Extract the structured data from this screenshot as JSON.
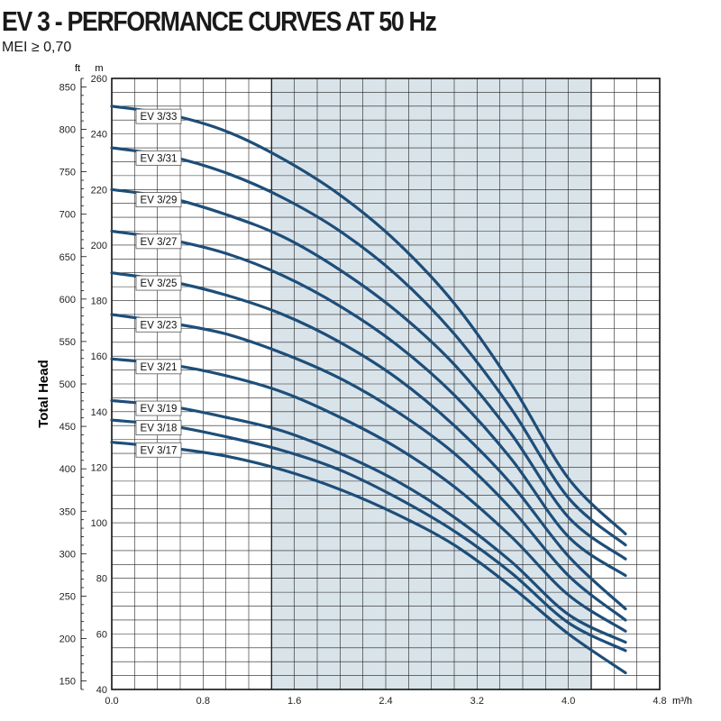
{
  "title": "EV 3 - PERFORMANCE CURVES AT 50 Hz",
  "subtitle": "MEI ≥ 0,70",
  "chart_data": {
    "type": "line",
    "title": "EV 3 - PERFORMANCE CURVES AT 50 Hz",
    "subtitle": "MEI ≥ 0,70",
    "xlabel": "m³/h",
    "ylabel": "Total Head",
    "y_unit_left": "m",
    "y_unit_ft": "ft",
    "xlim": [
      0,
      4.8
    ],
    "ylim": [
      40,
      260
    ],
    "ylim_ft": [
      140,
      860
    ],
    "x_ticks": [
      "0.0",
      "0.8",
      "1.6",
      "2.4",
      "3.2",
      "4.0",
      "4.8"
    ],
    "y_ticks_m": [
      "40",
      "60",
      "80",
      "100",
      "120",
      "140",
      "160",
      "180",
      "200",
      "220",
      "240",
      "260"
    ],
    "y_ticks_ft": [
      "150",
      "200",
      "250",
      "300",
      "350",
      "400",
      "450",
      "500",
      "550",
      "600",
      "650",
      "700",
      "750",
      "800",
      "850"
    ],
    "shaded_range": [
      1.4,
      4.2
    ],
    "grid": true,
    "colors": {
      "curve": "#1d4e79",
      "shade": "#d9e3ea",
      "grid": "#222222"
    },
    "x": [
      0,
      0.5,
      1.0,
      1.5,
      2.0,
      2.5,
      3.0,
      3.5,
      4.0,
      4.5
    ],
    "series": [
      {
        "name": "EV 3/33",
        "values": [
          250,
          247,
          241,
          231,
          218,
          201,
          179,
          150,
          116,
          96
        ]
      },
      {
        "name": "EV 3/31",
        "values": [
          235,
          232,
          226,
          217,
          205,
          189,
          168,
          141,
          109,
          92
        ]
      },
      {
        "name": "EV 3/29",
        "values": [
          220,
          217,
          211,
          203,
          191,
          176,
          157,
          132,
          102,
          87
        ]
      },
      {
        "name": "EV 3/27",
        "values": [
          205,
          202,
          197,
          189,
          178,
          164,
          146,
          123,
          95,
          81
        ]
      },
      {
        "name": "EV 3/25",
        "values": [
          190,
          187,
          182,
          175,
          165,
          152,
          135,
          114,
          88,
          69
        ]
      },
      {
        "name": "EV 3/23",
        "values": [
          175,
          172,
          168,
          161,
          152,
          140,
          125,
          105,
          81,
          65
        ]
      },
      {
        "name": "EV 3/21",
        "values": [
          159,
          157,
          153,
          147,
          138,
          127,
          113,
          95,
          74,
          61
        ]
      },
      {
        "name": "EV 3/19",
        "values": [
          144,
          142,
          138,
          133,
          125,
          115,
          102,
          86,
          67,
          57
        ]
      },
      {
        "name": "EV 3/18",
        "values": [
          137,
          135,
          131,
          126,
          119,
          109,
          97,
          82,
          64,
          54
        ]
      },
      {
        "name": "EV 3/17",
        "values": [
          129,
          127,
          124,
          119,
          112,
          103,
          92,
          77,
          60,
          46
        ]
      }
    ]
  }
}
